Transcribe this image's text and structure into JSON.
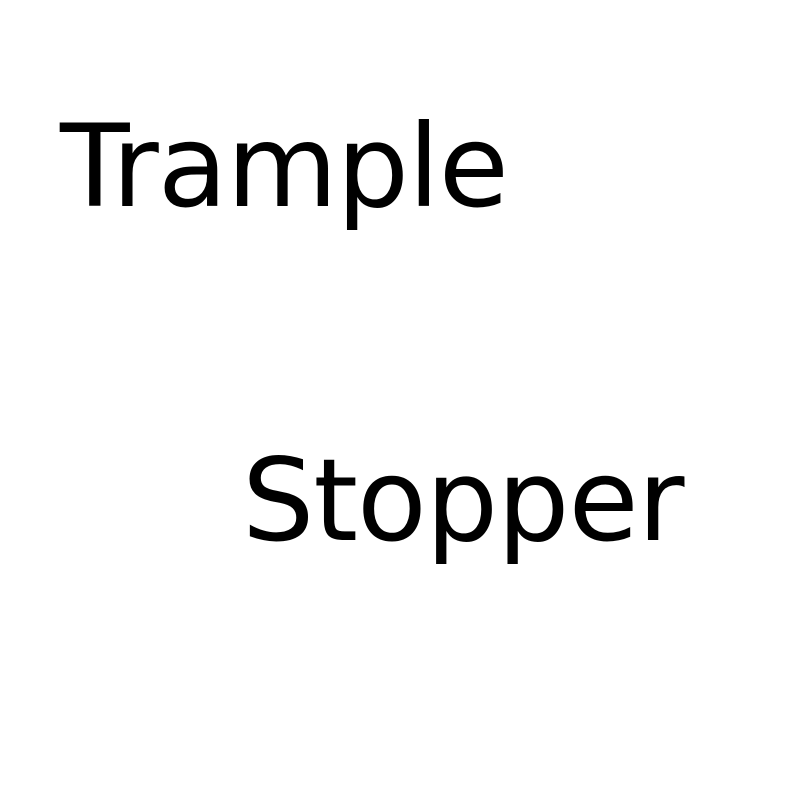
{
  "words": {
    "top": "Trample",
    "bottom": "Stopper"
  },
  "colors": {
    "background": "#ffffff",
    "text": "#000000"
  }
}
